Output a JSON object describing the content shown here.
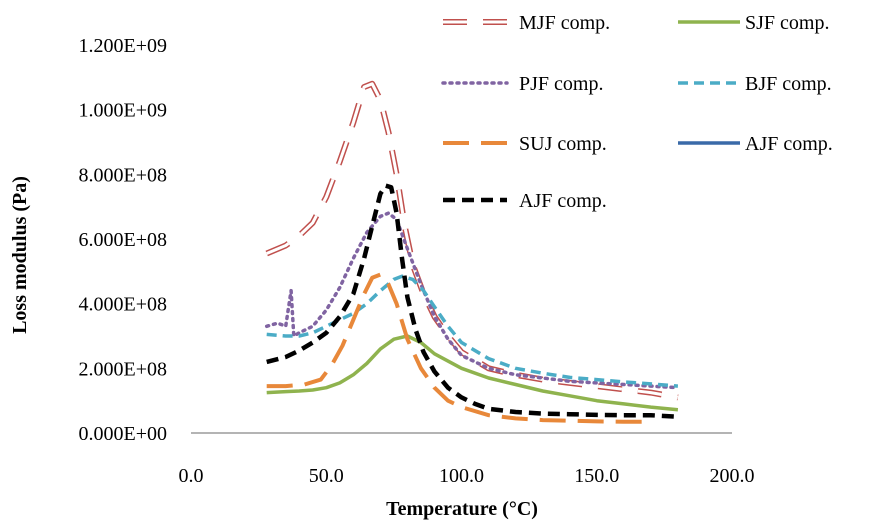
{
  "chart_data": {
    "type": "line",
    "title": "",
    "xlabel": "Temperature (°C)",
    "ylabel": "Loss modulus (Pa)",
    "xlim": [
      0,
      200
    ],
    "ylim": [
      0,
      1200000000
    ],
    "x_ticks": [
      0,
      50,
      100,
      150,
      200
    ],
    "x_tick_labels": [
      "0.0",
      "50.0",
      "100.0",
      "150.0",
      "200.0"
    ],
    "y_ticks": [
      0,
      200000000,
      400000000,
      600000000,
      800000000,
      1000000000,
      1200000000
    ],
    "y_tick_labels": [
      "0.000E+00",
      "2.000E+08",
      "4.000E+08",
      "6.000E+08",
      "8.000E+08",
      "1.000E+09",
      "1.200E+09"
    ],
    "grid": false,
    "legend_position": "top-right",
    "series": [
      {
        "name": "MJF comp.",
        "color": "#c0504d",
        "style": "hollow-dash",
        "x": [
          28,
          35,
          40,
          45,
          50,
          55,
          60,
          64,
          67,
          70,
          73,
          76,
          79,
          82,
          86,
          90,
          95,
          100,
          110,
          120,
          130,
          140,
          150,
          160,
          170,
          180
        ],
        "y": [
          555000000,
          580000000,
          610000000,
          650000000,
          730000000,
          840000000,
          960000000,
          1070000000,
          1080000000,
          1030000000,
          930000000,
          800000000,
          640000000,
          520000000,
          430000000,
          360000000,
          300000000,
          250000000,
          200000000,
          180000000,
          165000000,
          155000000,
          145000000,
          135000000,
          125000000,
          110000000
        ]
      },
      {
        "name": "SJF comp.",
        "color": "#8fb34e",
        "style": "solid",
        "x": [
          28,
          35,
          40,
          45,
          50,
          55,
          60,
          65,
          70,
          75,
          80,
          85,
          90,
          100,
          110,
          120,
          130,
          140,
          150,
          160,
          170,
          180
        ],
        "y": [
          125000000,
          128000000,
          130000000,
          133000000,
          140000000,
          155000000,
          180000000,
          215000000,
          260000000,
          290000000,
          300000000,
          280000000,
          245000000,
          200000000,
          170000000,
          150000000,
          130000000,
          115000000,
          100000000,
          90000000,
          80000000,
          72000000
        ]
      },
      {
        "name": "PJF comp.",
        "color": "#8064a2",
        "style": "dotted",
        "x": [
          28,
          32,
          35,
          37,
          38,
          40,
          45,
          50,
          55,
          60,
          65,
          70,
          73,
          76,
          80,
          85,
          90,
          95,
          100,
          110,
          120,
          130,
          140,
          150,
          160,
          170,
          180
        ],
        "y": [
          330000000,
          340000000,
          330000000,
          440000000,
          300000000,
          310000000,
          330000000,
          380000000,
          450000000,
          540000000,
          620000000,
          670000000,
          680000000,
          660000000,
          570000000,
          460000000,
          360000000,
          290000000,
          240000000,
          200000000,
          180000000,
          170000000,
          160000000,
          155000000,
          150000000,
          145000000,
          140000000
        ]
      },
      {
        "name": "BJF comp.",
        "color": "#4bacc6",
        "style": "dashed",
        "x": [
          28,
          35,
          40,
          45,
          50,
          55,
          60,
          65,
          70,
          75,
          78,
          82,
          86,
          90,
          95,
          100,
          110,
          120,
          130,
          140,
          150,
          160,
          170,
          180
        ],
        "y": [
          305000000,
          300000000,
          300000000,
          310000000,
          330000000,
          350000000,
          370000000,
          400000000,
          440000000,
          475000000,
          485000000,
          475000000,
          440000000,
          390000000,
          330000000,
          280000000,
          230000000,
          200000000,
          185000000,
          172000000,
          165000000,
          158000000,
          152000000,
          145000000
        ]
      },
      {
        "name": "SUJ comp.",
        "color": "#e8883a",
        "style": "long-dash",
        "x": [
          28,
          35,
          42,
          48,
          52,
          56,
          60,
          64,
          67,
          70,
          73,
          76,
          80,
          85,
          90,
          95,
          100,
          110,
          120,
          130,
          140,
          150,
          160,
          170
        ],
        "y": [
          145000000,
          145000000,
          150000000,
          165000000,
          210000000,
          270000000,
          350000000,
          430000000,
          480000000,
          490000000,
          460000000,
          400000000,
          290000000,
          200000000,
          140000000,
          100000000,
          80000000,
          55000000,
          45000000,
          40000000,
          38000000,
          36000000,
          35000000,
          35000000
        ]
      },
      {
        "name": "AJF comp.",
        "color": "#3a6aa8",
        "style": "solid",
        "x": [],
        "y": []
      },
      {
        "name": "AJF comp.",
        "color": "#000000",
        "style": "heavy-dash",
        "x": [
          28,
          35,
          40,
          45,
          50,
          55,
          60,
          64,
          67,
          70,
          72,
          74,
          76,
          78,
          80,
          83,
          86,
          90,
          95,
          100,
          105,
          110,
          120,
          130,
          140,
          150,
          160,
          170,
          180
        ],
        "y": [
          220000000,
          235000000,
          255000000,
          280000000,
          310000000,
          360000000,
          430000000,
          540000000,
          640000000,
          740000000,
          765000000,
          760000000,
          680000000,
          540000000,
          420000000,
          320000000,
          250000000,
          190000000,
          140000000,
          110000000,
          90000000,
          75000000,
          65000000,
          60000000,
          58000000,
          56000000,
          55000000,
          55000000,
          50000000
        ]
      }
    ]
  }
}
